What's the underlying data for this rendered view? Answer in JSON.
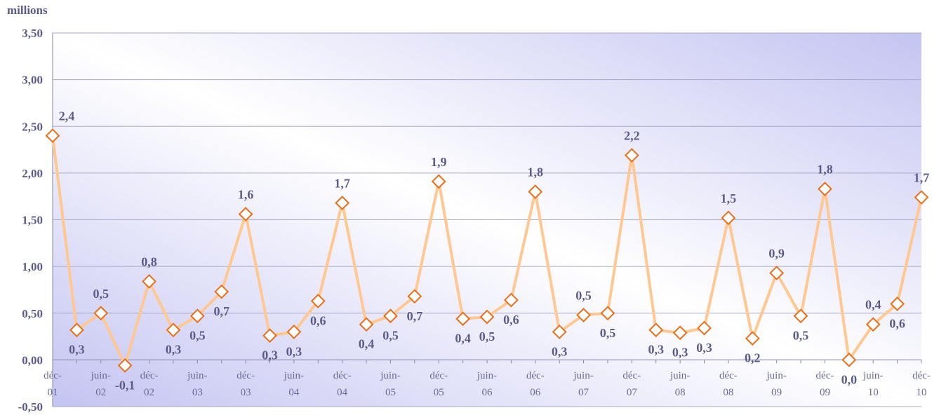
{
  "chart_data": {
    "type": "line",
    "y_label": "millions",
    "categories": [
      "déc-01",
      null,
      "juin-02",
      null,
      "déc-02",
      null,
      "juin-03",
      null,
      "déc-03",
      null,
      "juin-04",
      null,
      "déc-04",
      null,
      "juin-05",
      null,
      "déc-05",
      null,
      "juin-06",
      null,
      "déc-06",
      null,
      "juin-07",
      null,
      "déc-07",
      null,
      "juin-08",
      null,
      "déc-08",
      null,
      "juin-09",
      null,
      "déc-09",
      null,
      "juin-10",
      null,
      "déc-10"
    ],
    "series": [
      {
        "name": "millions",
        "color": "#ffc890",
        "marker_color": "#e8701a",
        "values": [
          2.4,
          0.32,
          0.5,
          -0.06,
          0.84,
          0.32,
          0.47,
          0.73,
          1.56,
          0.26,
          0.3,
          0.63,
          1.68,
          0.38,
          0.47,
          0.68,
          1.91,
          0.44,
          0.46,
          0.64,
          1.8,
          0.3,
          0.48,
          0.5,
          2.19,
          0.32,
          0.29,
          0.34,
          1.52,
          0.23,
          0.93,
          0.47,
          1.83,
          0.0,
          0.38,
          0.6,
          1.74
        ],
        "value_labels": [
          "2,4",
          "0,3",
          "0,5",
          "-0,1",
          "0,8",
          "0,3",
          "0,5",
          "0,7",
          "1,6",
          "0,3",
          "0,3",
          "0,6",
          "1,7",
          "0,4",
          "0,5",
          "0,7",
          "1,9",
          "0,4",
          "0,5",
          "0,6",
          "1,8",
          "0,3",
          "0,5",
          "0,5",
          "2,2",
          "0,3",
          "0,3",
          "0,3",
          "1,5",
          "0,2",
          "0,9",
          "0,5",
          "1,8",
          "0,0",
          "0,4",
          "0,6",
          "1,7"
        ]
      }
    ],
    "ylim": [
      -0.5,
      3.5
    ],
    "yticks": [
      {
        "value": -0.5,
        "label": "-0,50"
      },
      {
        "value": 0,
        "label": "0,00"
      },
      {
        "value": 0.5,
        "label": "0,50"
      },
      {
        "value": 1,
        "label": "1,00"
      },
      {
        "value": 1.5,
        "label": "1,50"
      },
      {
        "value": 2,
        "label": "2,00"
      },
      {
        "value": 2.5,
        "label": "2,50"
      },
      {
        "value": 3,
        "label": "3,00"
      },
      {
        "value": 3.5,
        "label": "3,50"
      }
    ],
    "grid": true
  }
}
